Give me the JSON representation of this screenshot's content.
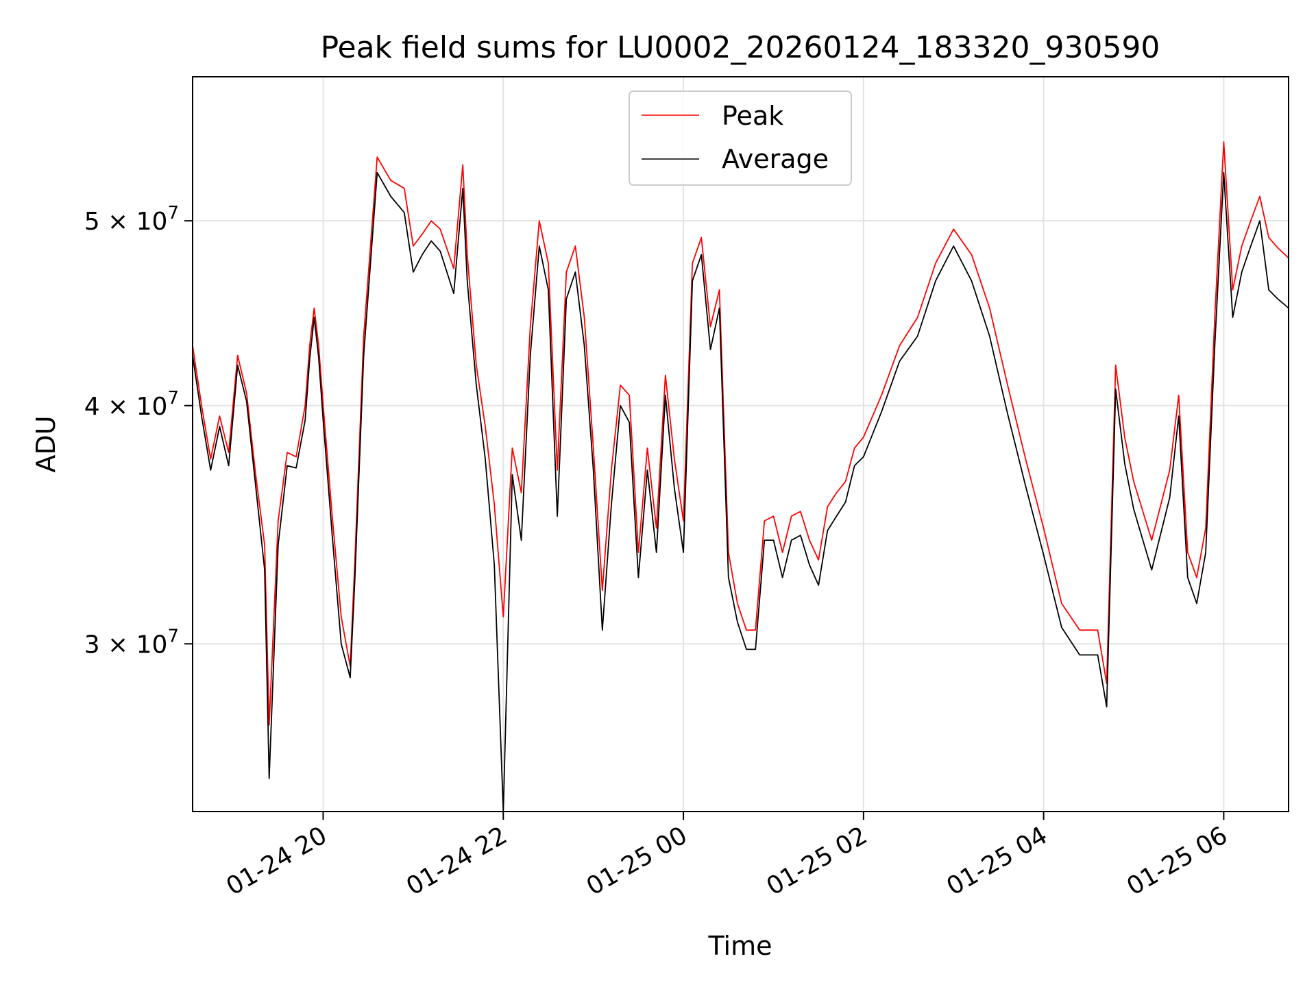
{
  "chart_data": {
    "type": "line",
    "title": "Peak field sums for LU0002_20260124_183320_930590",
    "xlabel": "Time",
    "ylabel": "ADU",
    "yscale": "log",
    "ylim": [
      24500000,
      59500000
    ],
    "xlim_hours": [
      -1.45,
      10.72
    ],
    "x_tick_labels": [
      "01-24 20",
      "01-24 22",
      "01-25 00",
      "01-25 02",
      "01-25 04",
      "01-25 06"
    ],
    "x_tick_hours": [
      0,
      2,
      4,
      6,
      8,
      10
    ],
    "x_unit": "hours since 2026-01-24 20:00",
    "y_ticks": [
      {
        "mantissa": "3",
        "exponent": "7",
        "value": 30000000
      },
      {
        "mantissa": "4",
        "exponent": "7",
        "value": 40000000
      },
      {
        "mantissa": "5",
        "exponent": "7",
        "value": 50000000
      }
    ],
    "grid": true,
    "legend_position": "top-center",
    "series": [
      {
        "name": "Peak",
        "color": "#ff0000",
        "x": [
          -1.45,
          -1.35,
          -1.25,
          -1.15,
          -1.05,
          -0.95,
          -0.85,
          -0.75,
          -0.65,
          -0.6,
          -0.5,
          -0.4,
          -0.3,
          -0.2,
          -0.15,
          -0.1,
          -0.05,
          0.0,
          0.1,
          0.2,
          0.3,
          0.35,
          0.45,
          0.6,
          0.75,
          0.9,
          1.0,
          1.1,
          1.2,
          1.3,
          1.45,
          1.55,
          1.6,
          1.7,
          1.8,
          1.9,
          2.0,
          2.1,
          2.2,
          2.3,
          2.4,
          2.5,
          2.6,
          2.7,
          2.8,
          2.9,
          3.0,
          3.1,
          3.2,
          3.3,
          3.4,
          3.5,
          3.6,
          3.7,
          3.8,
          3.9,
          4.0,
          4.1,
          4.2,
          4.3,
          4.4,
          4.5,
          4.6,
          4.7,
          4.8,
          4.9,
          5.0,
          5.1,
          5.2,
          5.3,
          5.4,
          5.5,
          5.6,
          5.7,
          5.8,
          5.9,
          6.0,
          6.2,
          6.4,
          6.6,
          6.8,
          7.0,
          7.2,
          7.4,
          7.6,
          7.8,
          8.0,
          8.2,
          8.4,
          8.6,
          8.7,
          8.8,
          8.9,
          9.0,
          9.2,
          9.4,
          9.5,
          9.6,
          9.7,
          9.8,
          9.9,
          10.0,
          10.1,
          10.2,
          10.3,
          10.4,
          10.5,
          10.6,
          10.72
        ],
        "values": [
          43000000,
          40000000,
          37500000,
          39500000,
          37800000,
          42500000,
          40600000,
          36800000,
          33800000,
          27200000,
          34800000,
          37800000,
          37600000,
          40000000,
          43000000,
          45000000,
          43000000,
          40000000,
          35000000,
          31000000,
          29200000,
          33000000,
          43500000,
          54000000,
          52500000,
          52000000,
          48500000,
          49200000,
          50000000,
          49500000,
          47200000,
          53500000,
          48000000,
          42000000,
          39000000,
          35500000,
          31000000,
          38000000,
          36000000,
          44000000,
          50000000,
          47500000,
          37000000,
          47000000,
          48500000,
          44500000,
          38000000,
          32000000,
          37000000,
          41000000,
          40500000,
          33500000,
          38000000,
          34500000,
          41500000,
          37500000,
          34800000,
          47500000,
          49000000,
          44000000,
          46000000,
          33500000,
          31500000,
          30500000,
          30500000,
          34800000,
          35000000,
          33500000,
          35000000,
          35200000,
          34000000,
          33200000,
          35400000,
          36000000,
          36500000,
          38000000,
          38500000,
          40500000,
          43000000,
          44500000,
          47500000,
          49500000,
          48000000,
          45000000,
          41000000,
          37500000,
          34500000,
          31500000,
          30500000,
          30500000,
          28600000,
          42000000,
          38500000,
          36500000,
          34000000,
          37000000,
          40500000,
          33500000,
          32500000,
          34500000,
          44500000,
          55000000,
          46000000,
          48500000,
          50000000,
          51500000,
          49000000,
          48400000,
          47800000
        ]
      },
      {
        "name": "Average",
        "color": "#000000",
        "x": [
          -1.45,
          -1.35,
          -1.25,
          -1.15,
          -1.05,
          -0.95,
          -0.85,
          -0.75,
          -0.65,
          -0.6,
          -0.5,
          -0.4,
          -0.3,
          -0.2,
          -0.15,
          -0.1,
          -0.05,
          0.0,
          0.1,
          0.2,
          0.3,
          0.35,
          0.45,
          0.6,
          0.75,
          0.9,
          1.0,
          1.1,
          1.2,
          1.3,
          1.45,
          1.55,
          1.6,
          1.7,
          1.8,
          1.9,
          2.0,
          2.1,
          2.2,
          2.3,
          2.4,
          2.5,
          2.6,
          2.7,
          2.8,
          2.9,
          3.0,
          3.1,
          3.2,
          3.3,
          3.4,
          3.5,
          3.6,
          3.7,
          3.8,
          3.9,
          4.0,
          4.1,
          4.2,
          4.3,
          4.4,
          4.5,
          4.6,
          4.7,
          4.8,
          4.9,
          5.0,
          5.1,
          5.2,
          5.3,
          5.4,
          5.5,
          5.6,
          5.7,
          5.8,
          5.9,
          6.0,
          6.2,
          6.4,
          6.6,
          6.8,
          7.0,
          7.2,
          7.4,
          7.6,
          7.8,
          8.0,
          8.2,
          8.4,
          8.6,
          8.7,
          8.8,
          8.9,
          9.0,
          9.2,
          9.4,
          9.5,
          9.6,
          9.7,
          9.8,
          9.9,
          10.0,
          10.1,
          10.2,
          10.3,
          10.4,
          10.5,
          10.6,
          10.72
        ],
        "values": [
          42500000,
          39500000,
          37000000,
          39000000,
          37200000,
          42000000,
          40200000,
          36300000,
          32800000,
          25500000,
          33800000,
          37200000,
          37100000,
          39300000,
          42300000,
          44500000,
          42400000,
          39300000,
          34200000,
          30000000,
          28800000,
          32300000,
          42500000,
          53000000,
          51500000,
          50500000,
          47000000,
          48000000,
          48800000,
          48200000,
          45800000,
          52000000,
          46500000,
          41000000,
          37500000,
          33000000,
          24500000,
          36800000,
          34000000,
          42500000,
          48500000,
          46000000,
          35000000,
          45500000,
          47000000,
          43000000,
          37000000,
          30500000,
          35500000,
          40000000,
          39200000,
          32500000,
          37000000,
          33500000,
          40500000,
          36200000,
          33500000,
          46500000,
          48000000,
          42800000,
          45000000,
          32500000,
          30800000,
          29800000,
          29800000,
          34000000,
          34000000,
          32500000,
          34000000,
          34200000,
          33000000,
          32200000,
          34400000,
          35000000,
          35600000,
          37200000,
          37600000,
          39700000,
          42200000,
          43500000,
          46500000,
          48500000,
          46500000,
          43500000,
          39600000,
          36300000,
          33400000,
          30600000,
          29600000,
          29600000,
          27800000,
          40800000,
          37300000,
          35300000,
          32800000,
          35800000,
          39500000,
          32500000,
          31500000,
          33500000,
          43000000,
          53000000,
          44500000,
          47000000,
          48500000,
          50000000,
          46000000,
          45500000,
          45000000
        ]
      }
    ]
  }
}
